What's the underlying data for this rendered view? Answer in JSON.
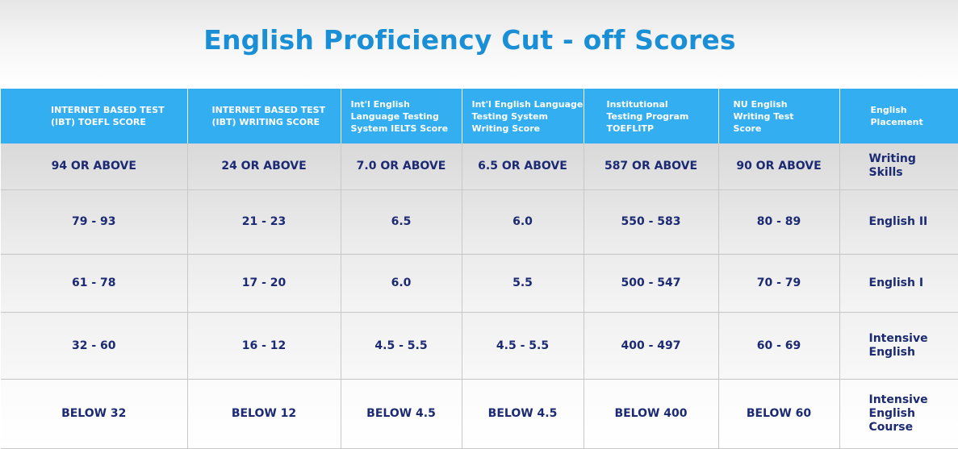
{
  "title": "English Proficiency Cut - off Scores",
  "colors": {
    "title": "#1a8fd6",
    "header_bg": "#33aff1",
    "header_text": "#ffffff",
    "cell_text": "#1b2a72"
  },
  "table": {
    "headers": [
      "INTERNET BASED TEST (IBT) TOEFL SCORE",
      "INTERNET BASED TEST (IBT) WRITING SCORE",
      "Int'l English Language Testing System IELTS Score",
      "Int'l English Language Testing System Writing Score",
      "Institutional Testing Program TOEFLITP",
      "NU English Writing Test Score",
      "English Placement"
    ],
    "rows": [
      [
        "94 OR ABOVE",
        "24 OR ABOVE",
        "7.0 OR ABOVE",
        "6.5 OR ABOVE",
        "587 OR ABOVE",
        "90 OR ABOVE",
        "Writing Skills"
      ],
      [
        "79 - 93",
        "21 - 23",
        "6.5",
        "6.0",
        "550 - 583",
        "80 - 89",
        "English II"
      ],
      [
        "61 - 78",
        "17 - 20",
        "6.0",
        "5.5",
        "500 - 547",
        "70 - 79",
        "English I"
      ],
      [
        "32 - 60",
        "16 - 12",
        "4.5 - 5.5",
        "4.5 - 5.5",
        "400 - 497",
        "60 - 69",
        "Intensive English"
      ],
      [
        "BELOW 32",
        "BELOW 12",
        "BELOW 4.5",
        "BELOW 4.5",
        "BELOW 400",
        "BELOW 60",
        "Intensive English Course"
      ]
    ]
  }
}
